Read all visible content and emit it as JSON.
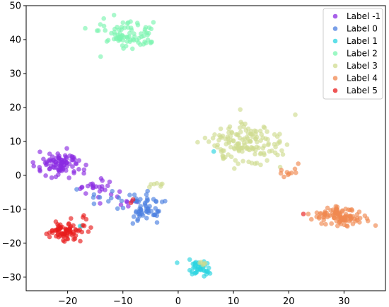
{
  "chart_data": {
    "type": "scatter",
    "title": "",
    "xlabel": "",
    "ylabel": "",
    "xlim": [
      -27.5,
      37.5
    ],
    "ylim": [
      -34,
      50
    ],
    "grid": false,
    "legend_position": "top-right",
    "xticks": [
      -20,
      -10,
      0,
      10,
      20,
      30
    ],
    "yticks": [
      -30,
      -20,
      -10,
      0,
      10,
      20,
      30,
      40,
      50
    ],
    "x_tick_labels": [
      "−20",
      "−10",
      "0",
      "10",
      "20",
      "30"
    ],
    "y_tick_labels": [
      "−30",
      "−20",
      "−10",
      "0",
      "10",
      "20",
      "30",
      "40",
      "50"
    ],
    "series": [
      {
        "name": "Label -1",
        "color": "#8b2be2",
        "clusters": [
          {
            "cx": -21.5,
            "cy": 3,
            "sx": 2.2,
            "sy": 2.0,
            "n": 90
          },
          {
            "cx": -14.5,
            "cy": -4.5,
            "sx": 1.5,
            "sy": 1.8,
            "n": 25
          },
          {
            "cx": -8,
            "cy": -8,
            "sx": 1.0,
            "sy": 1.0,
            "n": 6
          }
        ]
      },
      {
        "name": "Label 0",
        "color": "#4c7fe0",
        "clusters": [
          {
            "cx": -5.5,
            "cy": -10,
            "sx": 1.5,
            "sy": 2.0,
            "n": 55
          },
          {
            "cx": -11,
            "cy": -7,
            "sx": 2.5,
            "sy": 1.5,
            "n": 15
          }
        ]
      },
      {
        "name": "Label 1",
        "color": "#2ad4e0",
        "clusters": [
          {
            "cx": 3.8,
            "cy": -27.5,
            "sx": 1.0,
            "sy": 1.2,
            "n": 40
          },
          {
            "cx": -17.5,
            "cy": -15,
            "sx": 0.3,
            "sy": 0.3,
            "n": 2
          },
          {
            "cx": 6.5,
            "cy": 6.7,
            "sx": 0.2,
            "sy": 0.2,
            "n": 1
          }
        ]
      },
      {
        "name": "Label 2",
        "color": "#7cf5b0",
        "clusters": [
          {
            "cx": -9.5,
            "cy": 41,
            "sx": 2.3,
            "sy": 2.0,
            "n": 85
          }
        ]
      },
      {
        "name": "Label 3",
        "color": "#d0dc90",
        "clusters": [
          {
            "cx": 12.5,
            "cy": 9.5,
            "sx": 3.5,
            "sy": 3.0,
            "n": 150
          },
          {
            "cx": -4.5,
            "cy": -3,
            "sx": 0.8,
            "sy": 0.7,
            "n": 7
          },
          {
            "cx": 4.5,
            "cy": -25.5,
            "sx": 0.6,
            "sy": 0.5,
            "n": 5
          }
        ]
      },
      {
        "name": "Label 4",
        "color": "#f08850",
        "clusters": [
          {
            "cx": 29,
            "cy": -12,
            "sx": 2.5,
            "sy": 1.5,
            "n": 110
          },
          {
            "cx": 19.5,
            "cy": 0.5,
            "sx": 1.0,
            "sy": 1.0,
            "n": 10
          }
        ]
      },
      {
        "name": "Label 5",
        "color": "#e81c1c",
        "clusters": [
          {
            "cx": -20.5,
            "cy": -16.5,
            "sx": 1.5,
            "sy": 1.2,
            "n": 75
          },
          {
            "cx": -17,
            "cy": -12.5,
            "sx": 0.3,
            "sy": 0.3,
            "n": 3
          },
          {
            "cx": 22.5,
            "cy": -11.5,
            "sx": 0.1,
            "sy": 0.1,
            "n": 1
          },
          {
            "cx": -8.5,
            "cy": -7.5,
            "sx": 0.2,
            "sy": 0.2,
            "n": 2
          }
        ]
      }
    ]
  }
}
